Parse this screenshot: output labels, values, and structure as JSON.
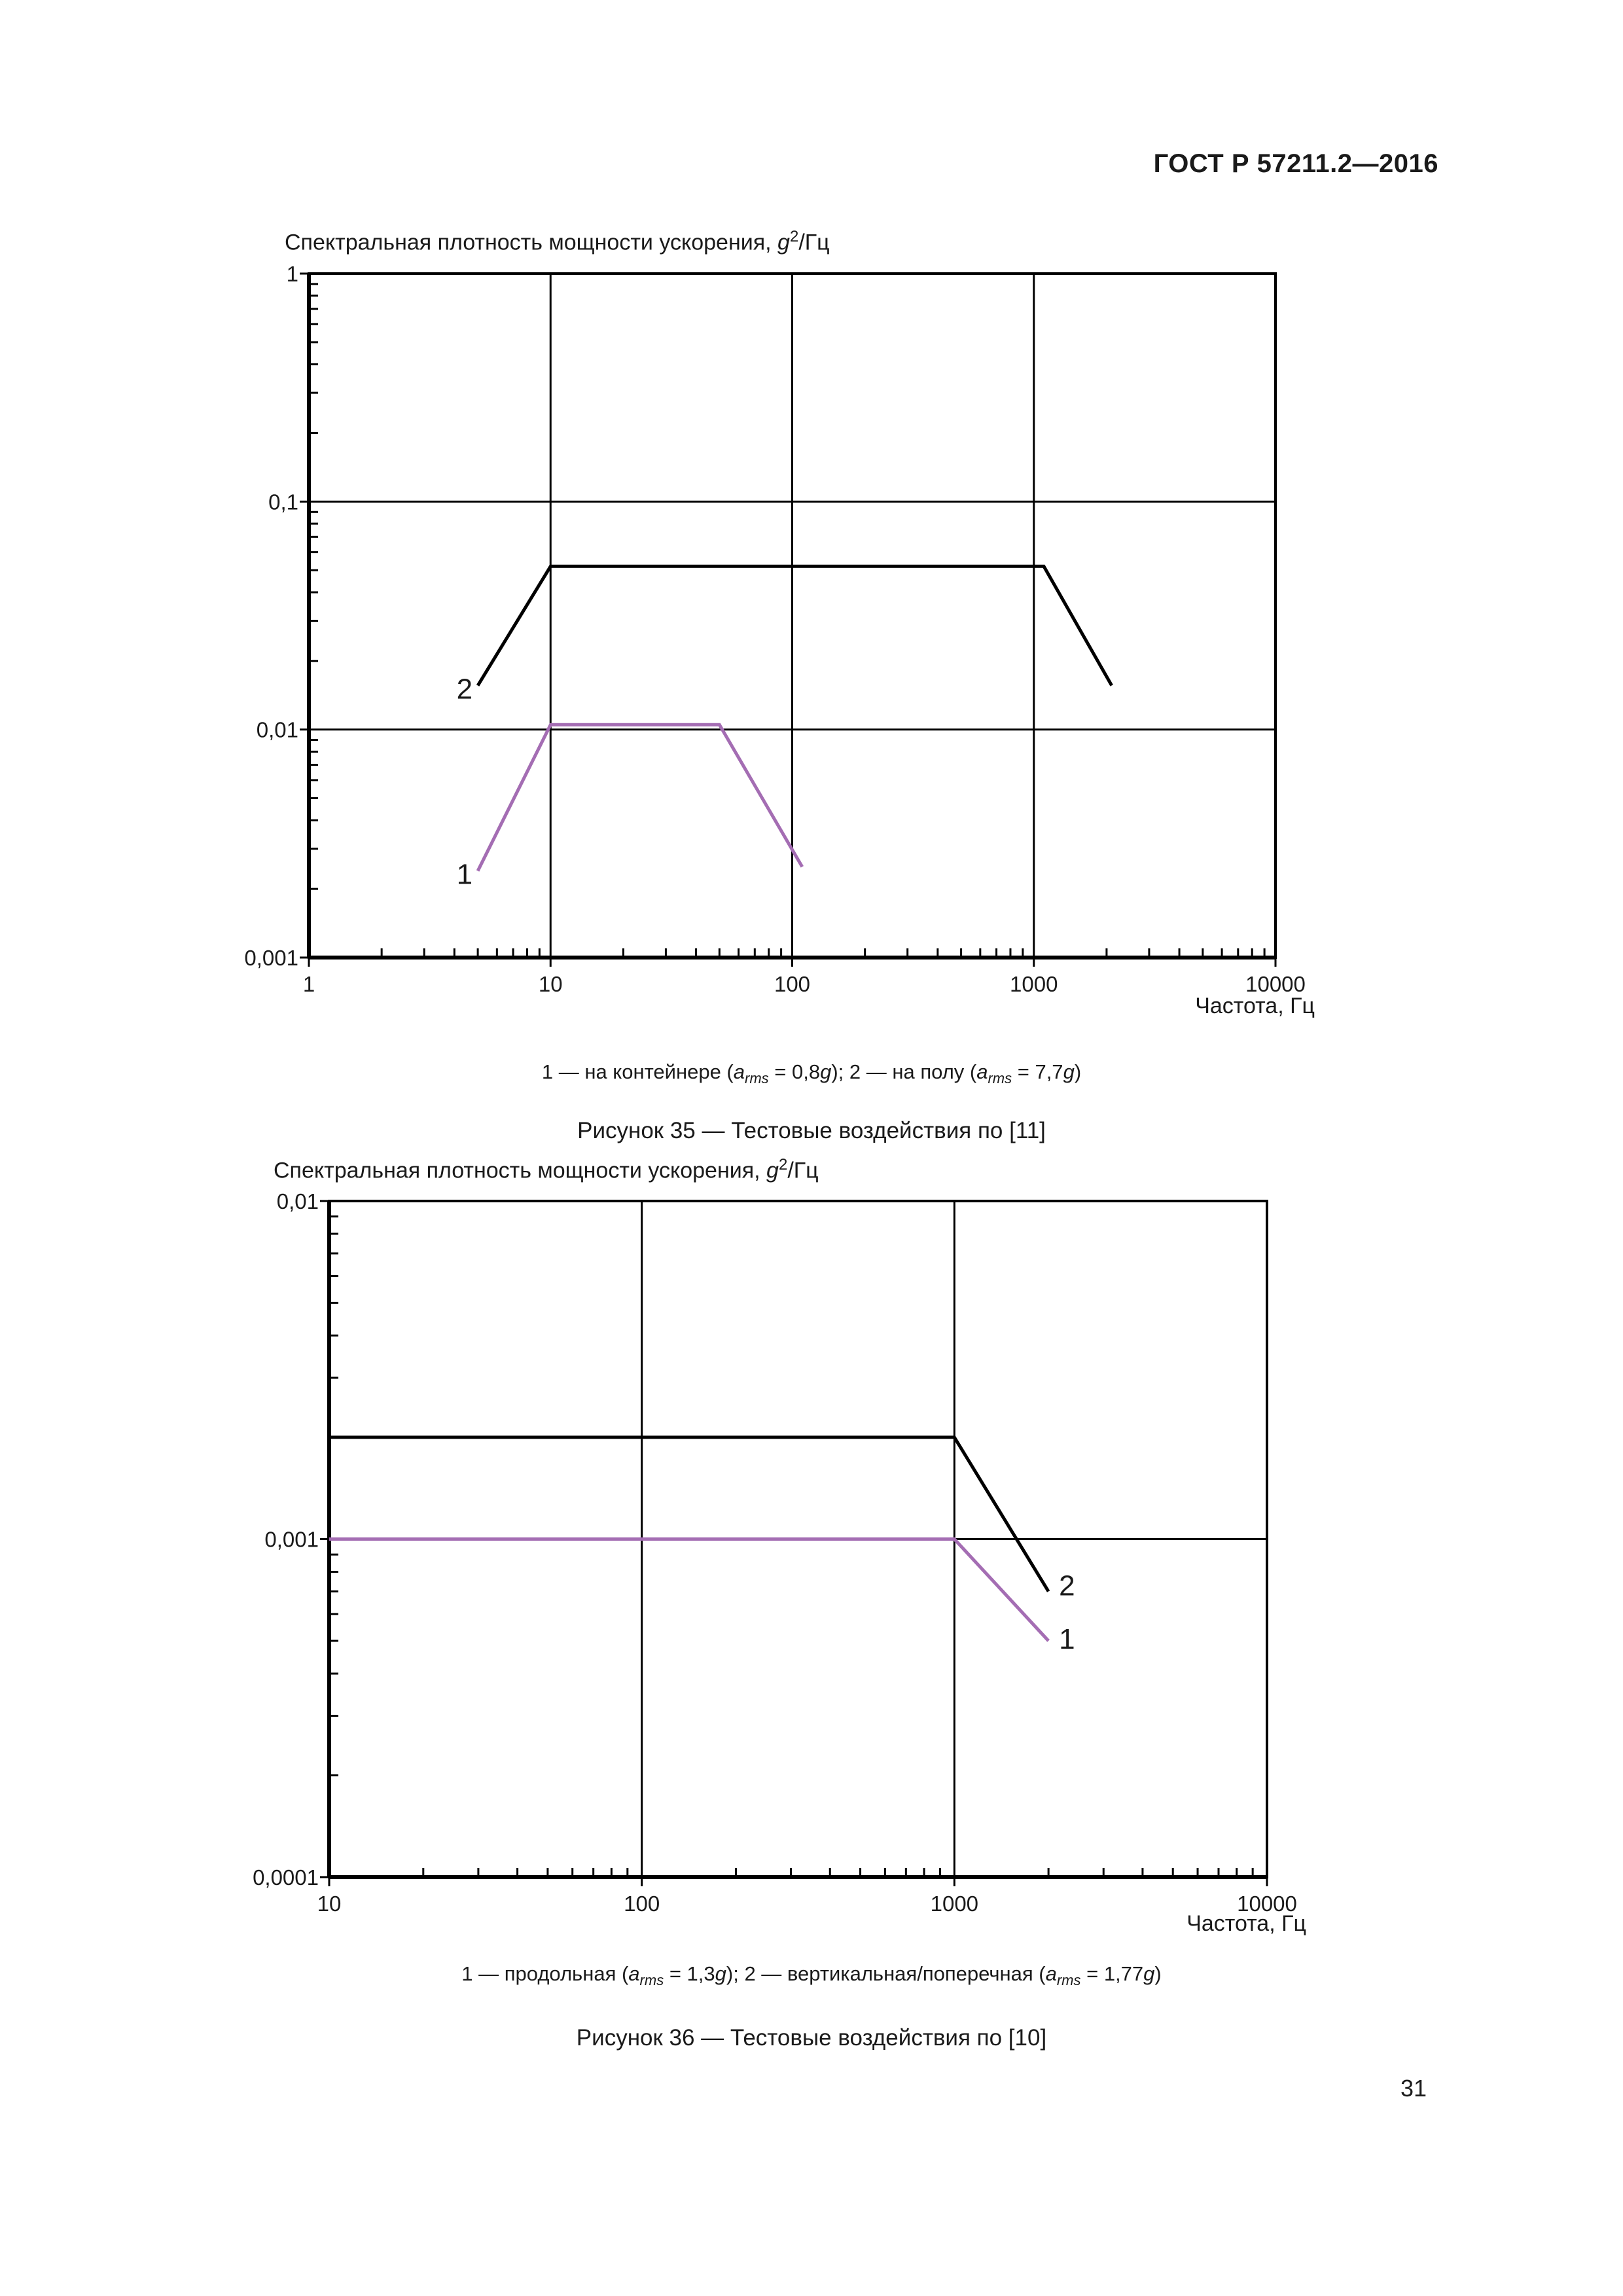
{
  "header": {
    "standard": "ГОСТ Р 57211.2—2016"
  },
  "figures": [
    {
      "ylabel_text": "Спектральная плотность мощности ускорения, ",
      "ylabel_unit_var": "g",
      "ylabel_unit_exp": "2",
      "ylabel_unit_tail": "/Гц",
      "xlabel": "Частота, Гц",
      "legend": {
        "item1_prefix": "1 — на контейнере (",
        "item1_value": " = 0,8",
        "item2_prefix": "); 2 — на полу (",
        "item2_value": " = 7,7",
        "sym_a": "a",
        "sym_rms": "rms",
        "sym_g": "g",
        "close": ")"
      },
      "caption": "Рисунок 35 — Тестовые воздействия по [11]"
    },
    {
      "ylabel_text": "Спектральная плотность мощности ускорения, ",
      "ylabel_unit_var": "g",
      "ylabel_unit_exp": "2",
      "ylabel_unit_tail": "/Гц",
      "xlabel": "Частота, Гц",
      "legend": {
        "item1_prefix": "1 — продольная (",
        "item1_value": " = 1,3",
        "item2_prefix": "); 2 — вертикальная/поперечная (",
        "item2_value": " = 1,77",
        "sym_a": "a",
        "sym_rms": "rms",
        "sym_g": "g",
        "close": ")"
      },
      "caption": "Рисунок 36 — Тестовые воздействия по [10]"
    }
  ],
  "page_number": "31",
  "colors": {
    "curve1": "#a46db3",
    "curve2": "#000000",
    "grid": "#000000"
  },
  "chart_data": [
    {
      "type": "line",
      "title": "Рисунок 35 — Тестовые воздействия по [11]",
      "xlabel": "Частота, Гц",
      "ylabel": "Спектральная плотность мощности ускорения, g²/Гц",
      "xscale": "log",
      "yscale": "log",
      "xlim": [
        1,
        10000
      ],
      "ylim": [
        0.001,
        1
      ],
      "x_ticks": [
        "1",
        "10",
        "100",
        "1000",
        "10000"
      ],
      "y_ticks": [
        "0,001",
        "0,01",
        "0,1",
        "1"
      ],
      "grid": true,
      "series": [
        {
          "name": "1 — на контейнере (a_rms = 0,8g)",
          "label": "1",
          "color": "#a46db3",
          "x": [
            5,
            10,
            50,
            110
          ],
          "y": [
            0.0024,
            0.0105,
            0.0105,
            0.0025
          ]
        },
        {
          "name": "2 — на полу (a_rms = 7,7g)",
          "label": "2",
          "color": "#000000",
          "x": [
            5,
            10,
            1100,
            2100
          ],
          "y": [
            0.0156,
            0.052,
            0.052,
            0.0156
          ]
        }
      ]
    },
    {
      "type": "line",
      "title": "Рисунок 36 — Тестовые воздействия по [10]",
      "xlabel": "Частота, Гц",
      "ylabel": "Спектральная плотность мощности ускорения, g²/Гц",
      "xscale": "log",
      "yscale": "log",
      "xlim": [
        10,
        10000
      ],
      "ylim": [
        0.0001,
        0.01
      ],
      "x_ticks": [
        "10",
        "100",
        "1000",
        "10000"
      ],
      "y_ticks": [
        "0,0001",
        "0,001",
        "0,01"
      ],
      "grid": true,
      "series": [
        {
          "name": "1 — продольная (a_rms = 1,3g)",
          "label": "1",
          "color": "#a46db3",
          "x": [
            10,
            1000,
            2000
          ],
          "y": [
            0.001,
            0.001,
            0.0005
          ]
        },
        {
          "name": "2 — вертикальная/поперечная (a_rms = 1,77g)",
          "label": "2",
          "color": "#000000",
          "x": [
            10,
            1000,
            2000
          ],
          "y": [
            0.002,
            0.002,
            0.0007
          ]
        }
      ]
    }
  ]
}
